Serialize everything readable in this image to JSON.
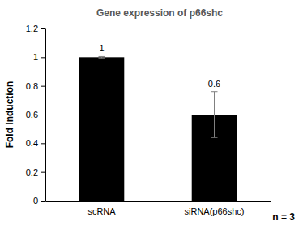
{
  "chart_data": {
    "type": "bar",
    "title": "Gene expression of p66shc",
    "y_label": "Fold Induction",
    "categories": [
      "scRNA",
      "siRNA(p66shc)"
    ],
    "values": [
      1,
      0.6
    ],
    "errors": [
      0.005,
      0.16
    ],
    "color": "#000000",
    "ylim": [
      0,
      1.2
    ],
    "yticks": [
      0,
      0.2,
      0.4,
      0.6,
      0.8,
      1,
      1.2
    ],
    "grid": false,
    "data_labels": true,
    "annotations": [
      "n = 3"
    ]
  }
}
